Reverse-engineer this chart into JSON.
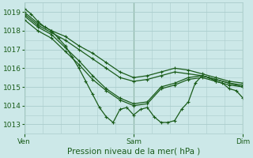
{
  "title": "Pression niveau de la mer( hPa )",
  "background_color": "#cce8e8",
  "grid_color": "#aacccc",
  "line_color": "#1a5c1a",
  "ylim": [
    1012.5,
    1019.5
  ],
  "yticks": [
    1013,
    1014,
    1015,
    1016,
    1017,
    1018,
    1019
  ],
  "xtick_labels": [
    "Ven",
    "Sam",
    "Dim"
  ],
  "xtick_positions": [
    0,
    48,
    96
  ],
  "total_hours": 96,
  "figsize": [
    3.2,
    2.0
  ],
  "dpi": 100,
  "series": [
    {
      "x": [
        0,
        3,
        6,
        9,
        12,
        15,
        18,
        21,
        24,
        27,
        30,
        33,
        36,
        39,
        42,
        45,
        48,
        51,
        54,
        57,
        60,
        63,
        66,
        69,
        72,
        75,
        78,
        81,
        84,
        87,
        90,
        93,
        96
      ],
      "y": [
        1019.2,
        1018.9,
        1018.5,
        1018.2,
        1018.0,
        1017.6,
        1017.2,
        1016.6,
        1016.0,
        1015.3,
        1014.6,
        1013.9,
        1013.4,
        1013.1,
        1013.8,
        1013.9,
        1013.5,
        1013.8,
        1013.9,
        1013.4,
        1013.1,
        1013.1,
        1013.2,
        1013.8,
        1014.2,
        1015.2,
        1015.6,
        1015.5,
        1015.3,
        1015.2,
        1014.9,
        1014.8,
        1014.4
      ]
    },
    {
      "x": [
        0,
        6,
        12,
        18,
        24,
        30,
        36,
        42,
        48,
        54,
        60,
        66,
        72,
        78,
        84,
        90,
        96
      ],
      "y": [
        1018.8,
        1018.2,
        1017.8,
        1017.1,
        1016.4,
        1015.6,
        1014.9,
        1014.4,
        1014.1,
        1014.2,
        1015.0,
        1015.2,
        1015.5,
        1015.6,
        1015.4,
        1015.2,
        1015.1
      ]
    },
    {
      "x": [
        0,
        6,
        12,
        18,
        24,
        30,
        36,
        42,
        48,
        54,
        60,
        66,
        72,
        78,
        84,
        90,
        96
      ],
      "y": [
        1018.6,
        1018.0,
        1017.6,
        1016.9,
        1016.2,
        1015.4,
        1014.8,
        1014.3,
        1014.0,
        1014.1,
        1014.9,
        1015.1,
        1015.4,
        1015.5,
        1015.3,
        1015.1,
        1015.0
      ]
    },
    {
      "x": [
        0,
        6,
        12,
        18,
        24,
        30,
        36,
        42,
        48,
        54,
        60,
        66,
        72,
        78,
        84,
        90,
        96
      ],
      "y": [
        1018.9,
        1018.3,
        1017.9,
        1017.5,
        1017.0,
        1016.5,
        1016.0,
        1015.5,
        1015.3,
        1015.4,
        1015.6,
        1015.8,
        1015.7,
        1015.6,
        1015.4,
        1015.2,
        1015.0
      ]
    },
    {
      "x": [
        0,
        6,
        12,
        18,
        24,
        30,
        36,
        42,
        48,
        54,
        60,
        66,
        72,
        78,
        84,
        90,
        96
      ],
      "y": [
        1019.0,
        1018.4,
        1018.0,
        1017.7,
        1017.2,
        1016.8,
        1016.3,
        1015.8,
        1015.5,
        1015.6,
        1015.8,
        1016.0,
        1015.9,
        1015.7,
        1015.5,
        1015.3,
        1015.2
      ]
    }
  ]
}
